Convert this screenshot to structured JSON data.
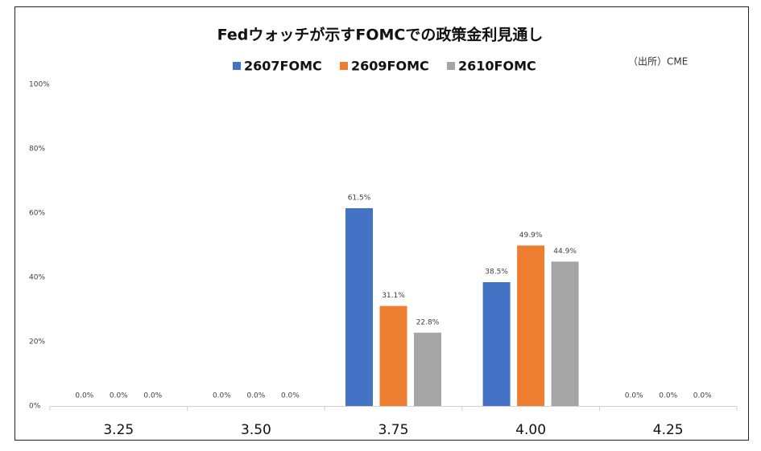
{
  "chart_data": {
    "type": "bar",
    "title": "Fedウォッチが示すFOMCでの政策金利見通し",
    "annotation": "（出所）CME",
    "categories": [
      "3.25",
      "3.50",
      "3.75",
      "4.00",
      "4.25"
    ],
    "series": [
      {
        "name": "2607FOMC",
        "color": "#4472c4",
        "values": [
          0,
          0,
          61.5,
          38.5,
          0
        ],
        "value_labels": [
          "0.0%",
          "0.0%",
          "61.5%",
          "38.5%",
          "0.0%"
        ]
      },
      {
        "name": "2609FOMC",
        "color": "#ed7d31",
        "values": [
          0,
          0,
          31.1,
          49.9,
          0
        ],
        "value_labels": [
          "0.0%",
          "0.0%",
          "31.1%",
          "49.9%",
          "0.0%"
        ]
      },
      {
        "name": "2610FOMC",
        "color": "#a5a5a5",
        "values": [
          0,
          0,
          22.8,
          44.9,
          0
        ],
        "value_labels": [
          "0.0%",
          "0.0%",
          "22.8%",
          "44.9%",
          "0.0%"
        ]
      }
    ],
    "ylim": [
      0,
      100
    ],
    "yticks": [
      {
        "value": 0,
        "label": "0%"
      },
      {
        "value": 20,
        "label": "20%"
      },
      {
        "value": 40,
        "label": "40%"
      },
      {
        "value": 60,
        "label": "60%"
      },
      {
        "value": 80,
        "label": "80%"
      },
      {
        "value": 100,
        "label": "100%"
      }
    ],
    "grid": false,
    "legend": "top"
  }
}
